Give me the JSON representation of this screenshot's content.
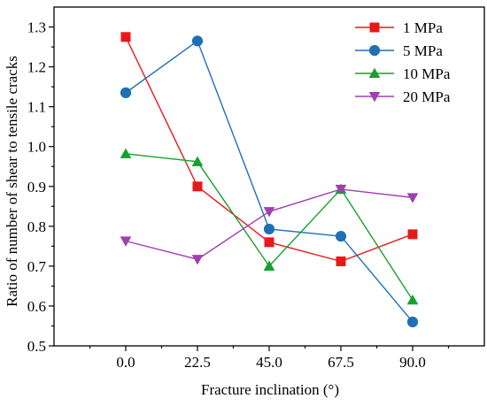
{
  "chart_data": {
    "type": "line",
    "title": "",
    "xlabel": "Fracture inclination (°)",
    "ylabel": "Ratio of number of shear to tensile cracks",
    "x": [
      0.0,
      22.5,
      45.0,
      67.5,
      90.0
    ],
    "x_tick_labels": [
      "0.0",
      "22.5",
      "45.0",
      "67.5",
      "90.0"
    ],
    "xlim": [
      -22.5,
      112.5
    ],
    "ylim": [
      0.5,
      1.35
    ],
    "y_ticks": [
      0.5,
      0.6,
      0.7,
      0.8,
      0.9,
      1.0,
      1.1,
      1.2,
      1.3
    ],
    "y_tick_labels": [
      "0.5",
      "0.6",
      "0.7",
      "0.8",
      "0.9",
      "1.0",
      "1.1",
      "1.2",
      "1.3"
    ],
    "grid": false,
    "legend_position": "top-right",
    "series": [
      {
        "name": "1 MPa",
        "marker": "square",
        "color": "#e8191a",
        "values": [
          1.275,
          0.9,
          0.76,
          0.712,
          0.78
        ]
      },
      {
        "name": "5 MPa",
        "marker": "circle",
        "color": "#1f6fb5",
        "values": [
          1.135,
          1.265,
          0.793,
          0.775,
          0.56
        ]
      },
      {
        "name": "10 MPa",
        "marker": "triangle-up",
        "color": "#16a12e",
        "values": [
          0.982,
          0.962,
          0.7,
          0.893,
          0.615
        ]
      },
      {
        "name": "20 MPa",
        "marker": "triangle-down",
        "color": "#a040b0",
        "values": [
          0.763,
          0.717,
          0.837,
          0.893,
          0.872
        ]
      }
    ]
  }
}
